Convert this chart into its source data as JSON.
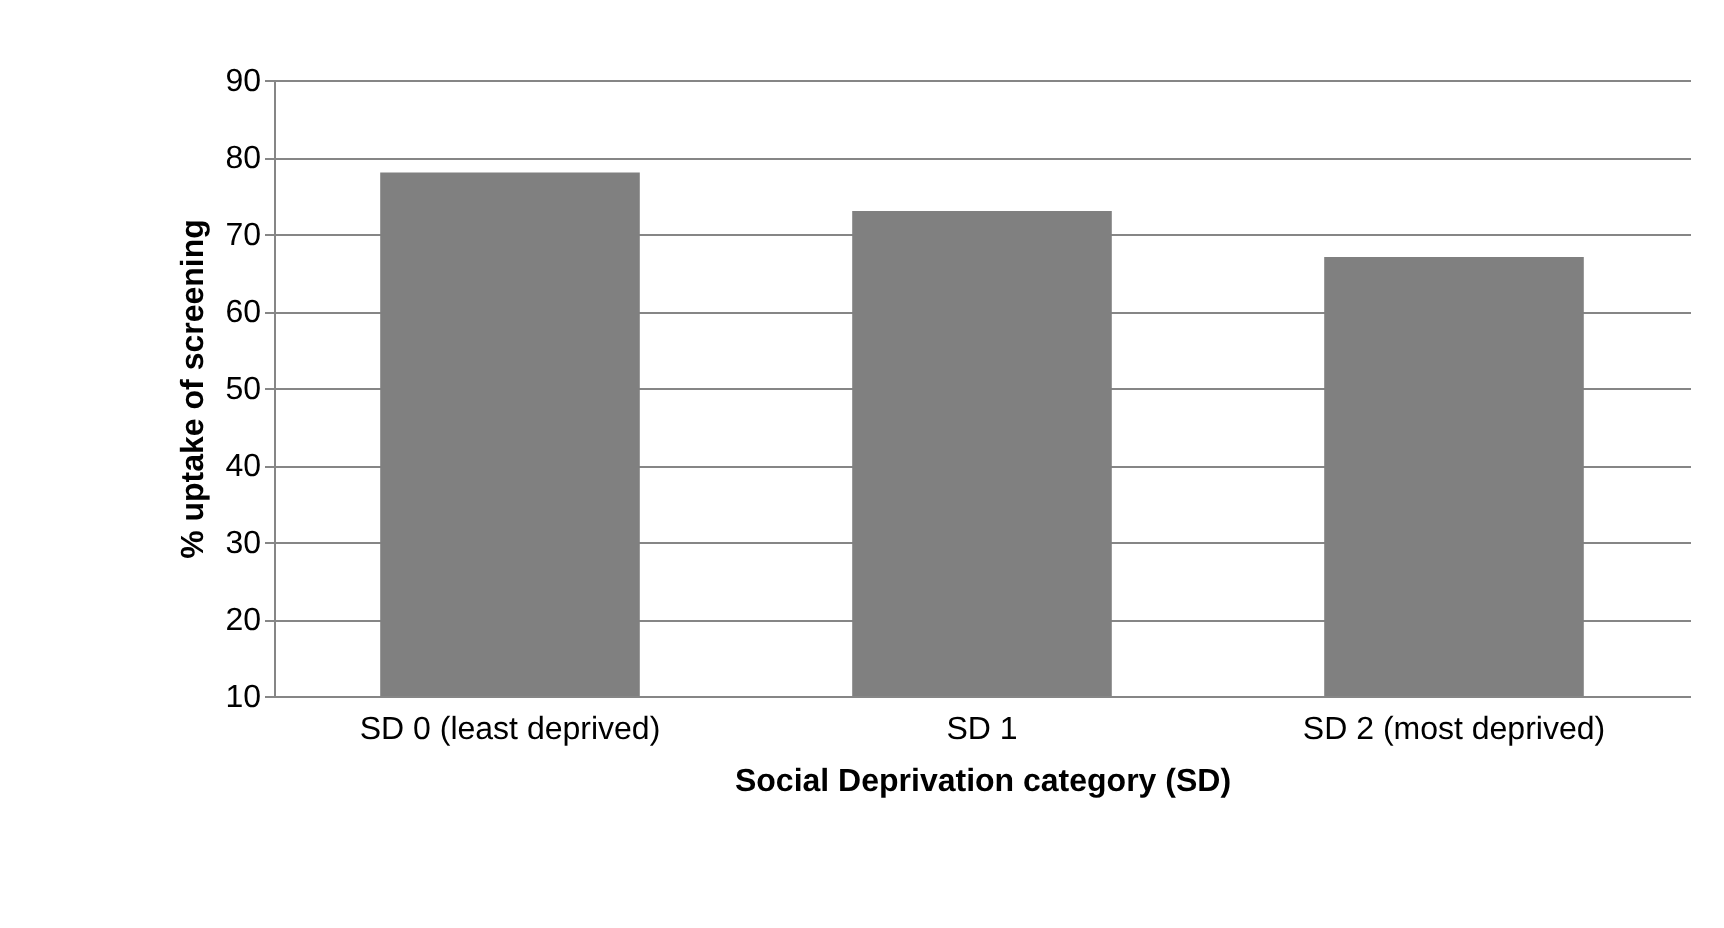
{
  "chart_data": {
    "type": "bar",
    "xlabel": "Social Deprivation category (SD)",
    "ylabel": "% uptake of screening",
    "categories": [
      "SD 0 (least deprived)",
      "SD 1",
      "SD 2 (most deprived)"
    ],
    "values": [
      78,
      73,
      67
    ],
    "color": "#808080",
    "ylim": [
      10,
      90
    ],
    "yticks": [
      10,
      20,
      30,
      40,
      50,
      60,
      70,
      80,
      90
    ],
    "grid": "y"
  }
}
